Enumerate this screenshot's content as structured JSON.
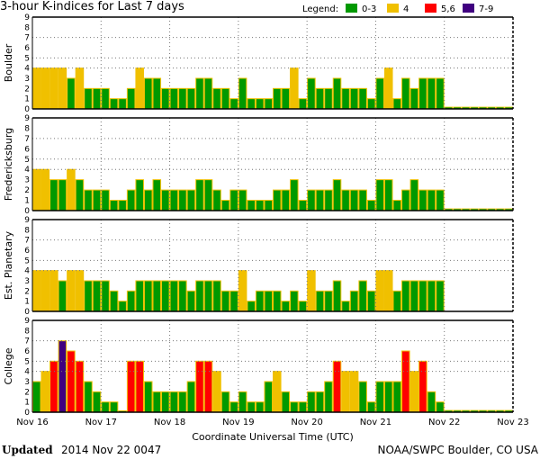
{
  "chart_data": {
    "type": "bar",
    "title": "3-hour K-indices for Last 7 days",
    "legend": {
      "label": "Legend:",
      "placement": "top-right",
      "entries": [
        {
          "label": "0-3",
          "color": "#009900"
        },
        {
          "label": "4",
          "color": "#f0c000"
        },
        {
          "label": "5,6",
          "color": "#ff0000"
        },
        {
          "label": "7-9",
          "color": "#400080"
        }
      ]
    },
    "xlabel": "Coordinate Universal Time (UTC)",
    "x_ticks": [
      "Nov 16",
      "Nov 17",
      "Nov 18",
      "Nov 19",
      "Nov 20",
      "Nov 21",
      "Nov 22",
      "Nov 23"
    ],
    "interval_hours": 3,
    "ylim": [
      0,
      9
    ],
    "y_ticks": [
      0,
      1,
      2,
      3,
      4,
      5,
      6,
      7,
      8,
      9
    ],
    "gridlines_y": [
      4,
      5,
      7
    ],
    "grid_x": "daily, dotted",
    "panels": [
      {
        "name": "Boulder",
        "values": [
          4,
          4,
          4,
          4,
          3,
          4,
          2,
          2,
          2,
          1,
          1,
          2,
          4,
          3,
          3,
          2,
          2,
          2,
          2,
          3,
          3,
          2,
          2,
          1,
          3,
          1,
          1,
          1,
          2,
          2,
          4,
          1,
          3,
          2,
          2,
          3,
          2,
          2,
          2,
          1,
          3,
          4,
          1,
          3,
          2,
          3,
          3,
          3,
          null,
          null,
          null,
          null,
          null,
          null,
          null,
          null
        ]
      },
      {
        "name": "Fredericksburg",
        "values": [
          4,
          4,
          3,
          3,
          4,
          3,
          2,
          2,
          2,
          1,
          1,
          2,
          3,
          2,
          3,
          2,
          2,
          2,
          2,
          3,
          3,
          2,
          1,
          2,
          2,
          1,
          1,
          1,
          2,
          2,
          3,
          1,
          2,
          2,
          2,
          3,
          2,
          2,
          2,
          1,
          3,
          3,
          1,
          2,
          3,
          2,
          2,
          2,
          null,
          null,
          null,
          null,
          null,
          null,
          null,
          null
        ]
      },
      {
        "name": "Est. Planetary",
        "values": [
          4,
          4,
          4,
          3,
          4,
          4,
          3,
          3,
          3,
          2,
          1,
          2,
          3,
          3,
          3,
          3,
          3,
          3,
          2,
          3,
          3,
          3,
          2,
          2,
          4,
          1,
          2,
          2,
          2,
          1,
          2,
          1,
          4,
          2,
          2,
          3,
          1,
          2,
          3,
          2,
          4,
          4,
          2,
          3,
          3,
          3,
          3,
          3,
          null,
          null,
          null,
          null,
          null,
          null,
          null,
          null
        ]
      },
      {
        "name": "College",
        "values": [
          3,
          4,
          5,
          7,
          6,
          5,
          3,
          2,
          1,
          1,
          0,
          5,
          5,
          3,
          2,
          2,
          2,
          2,
          3,
          5,
          5,
          4,
          2,
          1,
          2,
          1,
          1,
          3,
          4,
          2,
          1,
          1,
          2,
          2,
          3,
          5,
          4,
          4,
          3,
          1,
          3,
          3,
          3,
          6,
          4,
          5,
          2,
          1,
          null,
          null,
          null,
          null,
          null,
          null,
          null,
          null
        ]
      }
    ]
  },
  "footer": {
    "updated_label": "Updated",
    "updated_value": "2014 Nov 22 0047",
    "source": "NOAA/SWPC Boulder, CO USA"
  }
}
